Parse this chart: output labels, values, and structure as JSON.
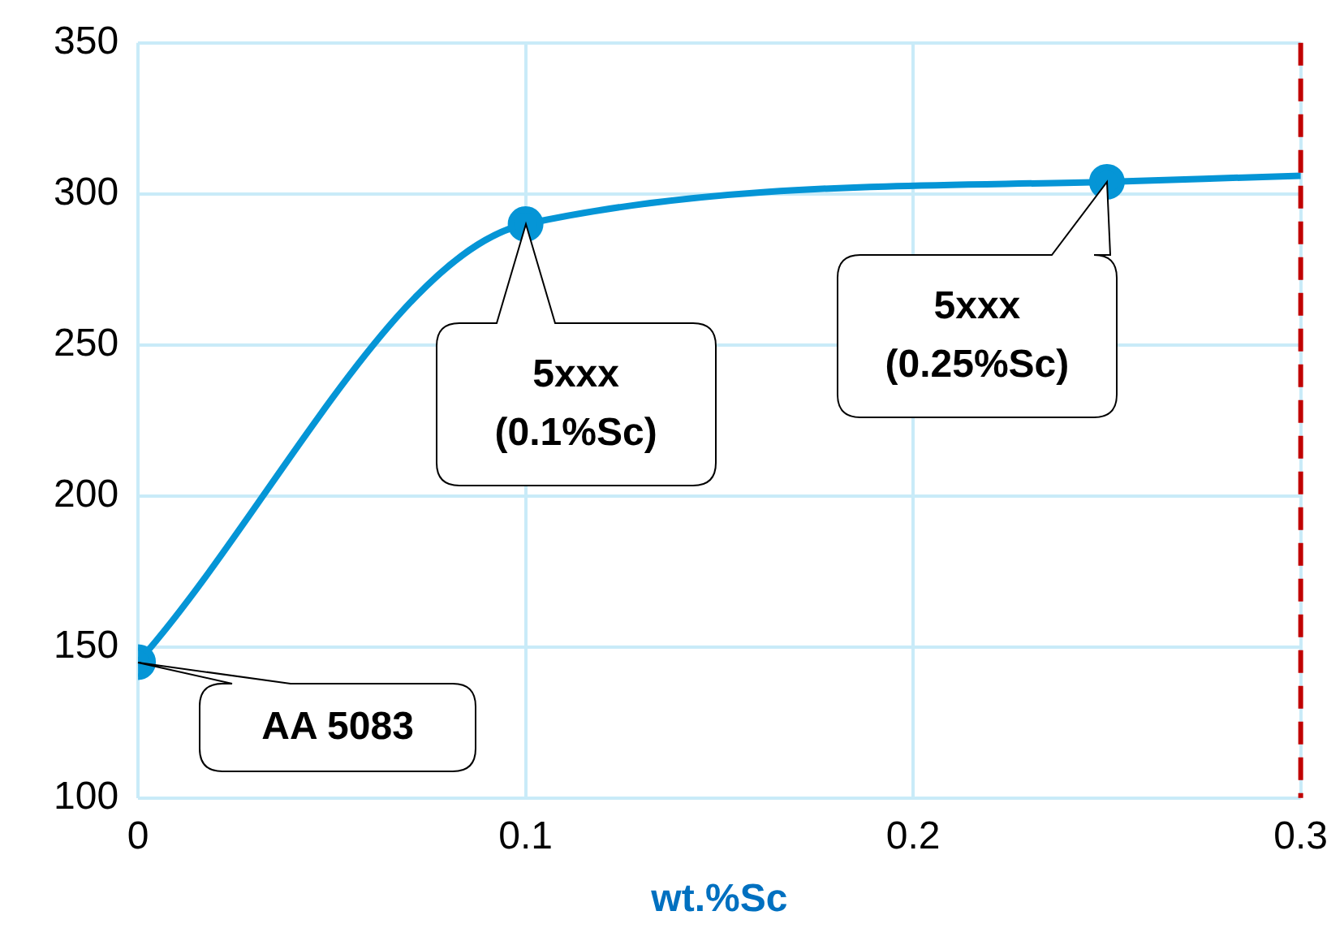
{
  "chart_data": {
    "type": "line",
    "xlabel": "wt.%Sc",
    "series": [
      {
        "color": "#0595d6",
        "x": [
          0,
          0.1,
          0.25
        ],
        "values": [
          145,
          290,
          304
        ],
        "marker": "circle"
      },
      {
        "color": "#0595d6",
        "x": [
          0.25,
          0.3
        ],
        "values": [
          304,
          306
        ],
        "marker": "none"
      }
    ],
    "xlim": [
      0,
      0.3
    ],
    "xticks": [
      0,
      0.1,
      0.2,
      0.3
    ],
    "ylim": [
      100,
      350
    ],
    "yticks": [
      100,
      150,
      200,
      250,
      300,
      350
    ],
    "grid": true,
    "legend": false,
    "ref_lines": [
      {
        "axis": "x",
        "value": 0.3,
        "color": "#c00000",
        "line_style": "dashed"
      }
    ],
    "annotations": [
      "AA 5083",
      "5xxx\n(0.1%Sc)",
      "5xxx\n(0.25%Sc)"
    ]
  }
}
